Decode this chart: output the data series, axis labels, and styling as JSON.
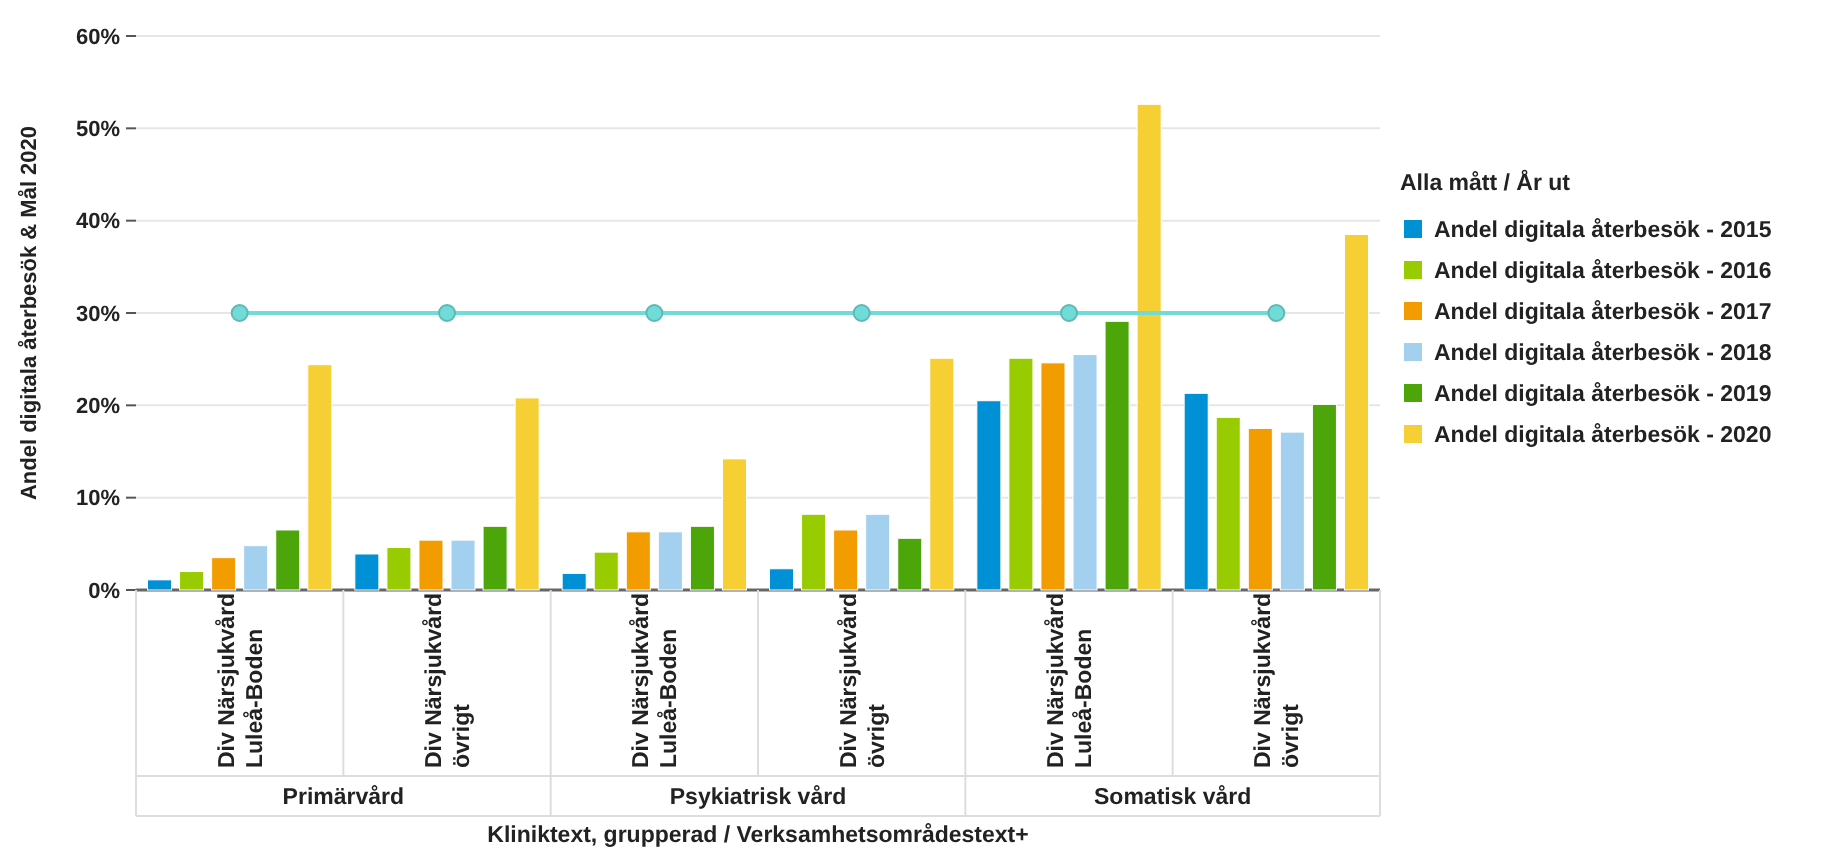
{
  "chart_data": {
    "type": "bar",
    "ylabel": "Andel digitala återbesök & Mål 2020",
    "xlabel": "Kliniktext, grupperad / Verksamhetsområdestext+",
    "legend_title": "Alla mått / År ut",
    "categories": [
      "Div Närsjukvård Luleå-Boden",
      "Div Närsjukvård övrigt",
      "Div Närsjukvård Luleå-Boden",
      "Div Närsjukvård övrigt",
      "Div Närsjukvård Luleå-Boden",
      "Div Närsjukvård övrigt"
    ],
    "annotations": [
      "Primärvård",
      "Psykiatrisk vård",
      "Somatisk vård"
    ],
    "ylim": [
      0,
      60
    ],
    "yticks": [
      {
        "value": 0,
        "label": "0%"
      },
      {
        "value": 10,
        "label": "10%"
      },
      {
        "value": 20,
        "label": "20%"
      },
      {
        "value": 30,
        "label": "30%"
      },
      {
        "value": 40,
        "label": "40%"
      },
      {
        "value": 50,
        "label": "50%"
      },
      {
        "value": 60,
        "label": "60%"
      }
    ],
    "grid": "y",
    "legend": "right",
    "series": [
      {
        "name": "Andel digitala återbesök - 2015",
        "color": "#0090d6",
        "values": [
          1.1,
          3.9,
          1.8,
          2.3,
          20.5,
          21.3
        ]
      },
      {
        "name": "Andel digitala återbesök - 2016",
        "color": "#99cc00",
        "values": [
          2.0,
          4.6,
          4.1,
          8.2,
          25.1,
          18.7
        ]
      },
      {
        "name": "Andel digitala återbesök - 2017",
        "color": "#f29c00",
        "values": [
          3.5,
          5.4,
          6.3,
          6.5,
          24.6,
          17.5
        ]
      },
      {
        "name": "Andel digitala återbesök - 2018",
        "color": "#a3d0ee",
        "values": [
          4.8,
          5.4,
          6.3,
          8.2,
          25.5,
          17.1
        ]
      },
      {
        "name": "Andel digitala återbesök - 2019",
        "color": "#4ca60a",
        "values": [
          6.5,
          6.9,
          6.9,
          5.6,
          29.1,
          20.1
        ]
      },
      {
        "name": "Andel digitala återbesök - 2020",
        "color": "#f5cf33",
        "values": [
          24.4,
          20.8,
          14.2,
          25.1,
          52.6,
          38.5
        ]
      },
      {
        "type": "line",
        "color": "#6fdcd8",
        "marker": "circle",
        "values": [
          30,
          30,
          30,
          30,
          30,
          30
        ]
      }
    ]
  }
}
